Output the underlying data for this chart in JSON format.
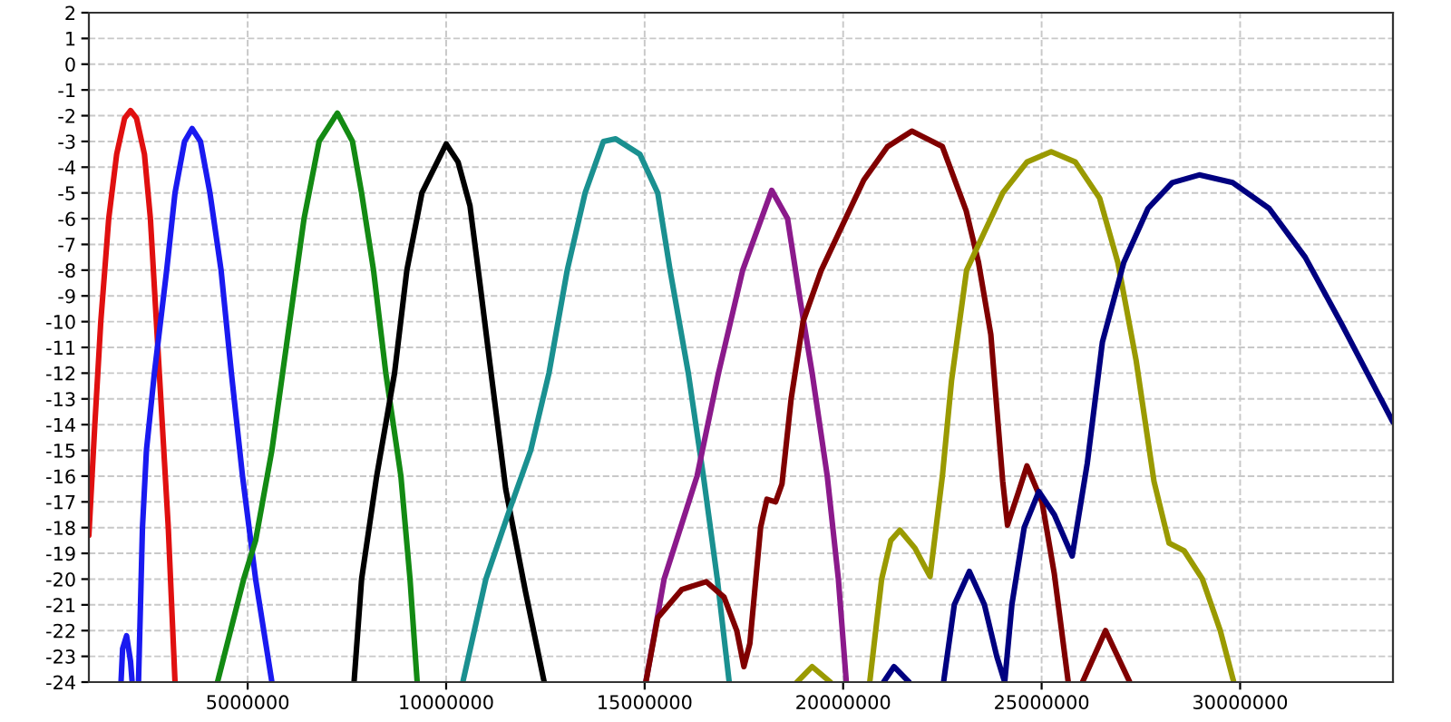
{
  "chart_data": {
    "type": "line",
    "xlim": [
      1000000,
      33850000
    ],
    "ylim": [
      -24,
      2
    ],
    "xticks": [
      5000000,
      10000000,
      15000000,
      20000000,
      25000000,
      30000000
    ],
    "yticks": [
      -24,
      -23,
      -22,
      -21,
      -20,
      -19,
      -18,
      -17,
      -16,
      -15,
      -14,
      -13,
      -12,
      -11,
      -10,
      -9,
      -8,
      -7,
      -6,
      -5,
      -4,
      -3,
      -2,
      -1,
      0,
      1,
      2
    ],
    "grid": true,
    "line_style": "solid",
    "marker": "none",
    "series": [
      {
        "color": "#e01010",
        "x": [
          1000000,
          1150000,
          1300000,
          1500000,
          1700000,
          1900000,
          2050000,
          2200000,
          2400000,
          2550000,
          2700000,
          2850000,
          3000000,
          3170000
        ],
        "values": [
          -18.3,
          -14,
          -10,
          -6,
          -3.5,
          -2.1,
          -1.8,
          -2.1,
          -3.5,
          -6,
          -10,
          -14,
          -18,
          -24
        ]
      },
      {
        "color": "#1a1af0",
        "x": [
          1810000,
          1850000,
          1950000,
          2050000,
          2090000,
          2170000,
          2250000,
          2350000,
          2450000,
          2650000,
          2960000,
          3170000,
          3410000,
          3600000,
          3810000,
          4050000,
          4330000,
          4590000,
          4870000,
          5200000,
          5610000
        ],
        "values": [
          -24,
          -22.7,
          -22.2,
          -23.2,
          -24,
          null,
          -24,
          -18,
          -15,
          -12,
          -8,
          -5,
          -3,
          -2.5,
          -3,
          -5,
          -8,
          -12,
          -16,
          -20,
          -24
        ]
      },
      {
        "color": "#138a13",
        "x": [
          4240000,
          4900000,
          5200000,
          5610000,
          6060000,
          6420000,
          6800000,
          7260000,
          7640000,
          7870000,
          8170000,
          8480000,
          8860000,
          9090000,
          9270000
        ],
        "values": [
          -24,
          -20,
          -18.5,
          -15,
          -10,
          -6,
          -3,
          -1.9,
          -3,
          -5,
          -8,
          -12,
          -16,
          -20,
          -24
        ]
      },
      {
        "color": "#000000",
        "x": [
          7680000,
          7870000,
          8250000,
          8700000,
          9010000,
          9390000,
          10000000,
          10300000,
          10600000,
          10850000,
          11100000,
          11500000,
          12000000,
          12470000
        ],
        "values": [
          -24,
          -20,
          -16,
          -12,
          -8,
          -5,
          -3.1,
          -3.8,
          -5.5,
          -8.5,
          -11.6,
          -16.5,
          -20.5,
          -24
        ]
      },
      {
        "color": "#1a9090",
        "x": [
          10420000,
          11000000,
          11600000,
          12130000,
          12590000,
          13050000,
          13500000,
          13960000,
          14270000,
          14880000,
          15330000,
          15640000,
          16100000,
          16480000,
          16830000,
          17130000
        ],
        "values": [
          -24,
          -20,
          -17.3,
          -15,
          -12,
          -8,
          -5,
          -3,
          -2.9,
          -3.5,
          -5,
          -8,
          -12,
          -16,
          -20,
          -24
        ]
      },
      {
        "color": "#8b1a8b",
        "x": [
          15030000,
          15490000,
          16320000,
          16860000,
          17470000,
          18200000,
          18600000,
          18900000,
          19220000,
          19600000,
          19880000,
          20080000
        ],
        "values": [
          -24,
          -20,
          -16,
          -12,
          -8,
          -4.9,
          -6,
          -9,
          -12,
          -16,
          -20,
          -24
        ]
      },
      {
        "color": "#800000",
        "x": [
          15030000,
          15330000,
          15940000,
          16550000,
          17000000,
          17320000,
          17500000,
          17650000,
          17920000,
          18080000,
          18300000,
          18460000,
          18690000,
          18990000,
          19450000,
          20060000,
          20520000,
          21120000,
          21730000,
          22500000,
          23100000,
          23410000,
          23720000,
          24020000,
          24140000,
          24400000,
          24630000,
          25010000,
          25320000,
          25670000,
          25850000,
          26030000,
          26610000,
          27220000
        ],
        "values": [
          -24,
          -21.5,
          -20.4,
          -20.1,
          -20.7,
          -22,
          -23.4,
          -22.5,
          -18,
          -16.9,
          -17,
          -16.3,
          -13,
          -10,
          -8,
          -6,
          -4.5,
          -3.2,
          -2.6,
          -3.2,
          -5.7,
          -7.7,
          -10.5,
          -16.2,
          -17.9,
          -16.7,
          -15.6,
          -17,
          -19.8,
          -24,
          null,
          -24,
          -22,
          -24
        ]
      },
      {
        "color": "#9a9a00",
        "x": [
          18840000,
          19220000,
          19680000,
          20200000,
          20670000,
          20970000,
          21200000,
          21430000,
          21810000,
          22190000,
          22500000,
          22730000,
          23110000,
          24020000,
          24630000,
          25240000,
          25850000,
          26460000,
          26920000,
          27380000,
          27830000,
          28210000,
          28590000,
          29050000,
          29500000,
          29840000
        ],
        "values": [
          -24,
          -23.4,
          -24,
          null,
          -24,
          -20,
          -18.5,
          -18.1,
          -18.8,
          -19.9,
          -16,
          -12.3,
          -8,
          -5,
          -3.8,
          -3.4,
          -3.8,
          -5.2,
          -7.7,
          -11.5,
          -16.2,
          -18.6,
          -18.9,
          -20,
          -22,
          -24
        ]
      },
      {
        "color": "#000080",
        "x": [
          21020000,
          21280000,
          21660000,
          22100000,
          22530000,
          22800000,
          23180000,
          23560000,
          23870000,
          24070000,
          24250000,
          24560000,
          24930000,
          25320000,
          25770000,
          26150000,
          26530000,
          27070000,
          27680000,
          28290000,
          28970000,
          29810000,
          30730000,
          31640000,
          32560000,
          33850000
        ],
        "values": [
          -24,
          -23.4,
          -24,
          null,
          -24,
          -21,
          -19.7,
          -21,
          -23,
          -24,
          -21,
          -18,
          -16.6,
          -17.5,
          -19.1,
          -15.5,
          -10.8,
          -7.7,
          -5.6,
          -4.6,
          -4.3,
          -4.6,
          -5.6,
          -7.5,
          -10.1,
          -13.9
        ]
      }
    ]
  }
}
